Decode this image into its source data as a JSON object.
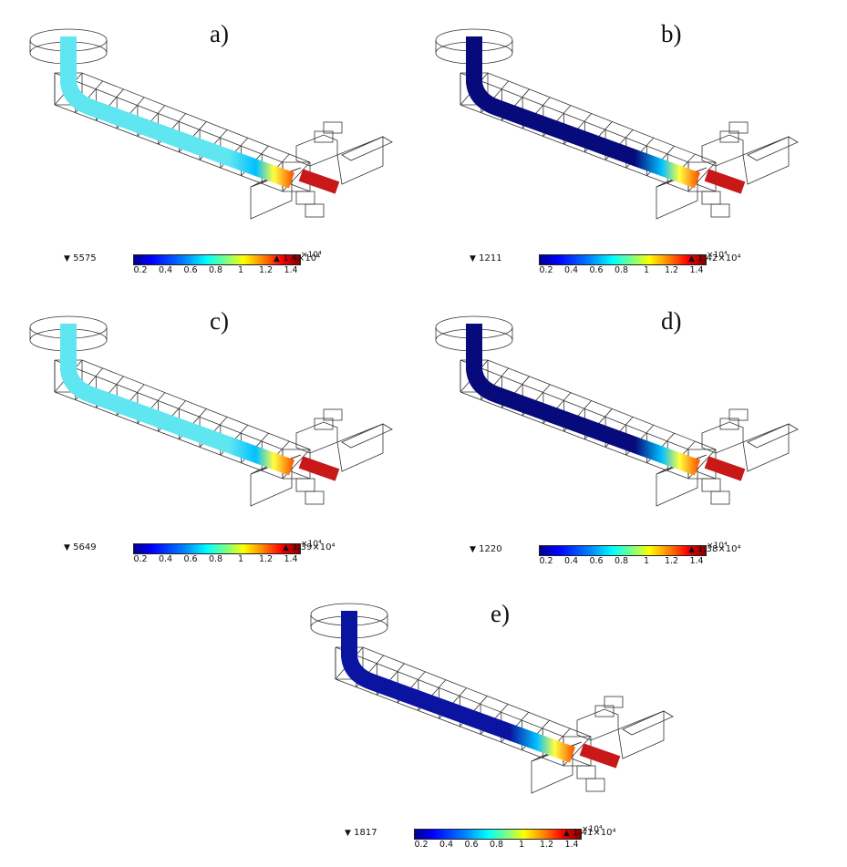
{
  "panels": [
    {
      "id": "a",
      "label": "a)",
      "color": "#5fe6f0",
      "min": "5575",
      "max": "1.4×10⁴"
    },
    {
      "id": "b",
      "label": "b)",
      "color": "#070a7a",
      "min": "1211",
      "max": "1.42×10⁴"
    },
    {
      "id": "c",
      "label": "c)",
      "color": "#5fe6f0",
      "min": "5649",
      "max": "1.39×10⁴"
    },
    {
      "id": "d",
      "label": "d)",
      "color": "#070a7a",
      "min": "1220",
      "max": "1.38×10⁴"
    },
    {
      "id": "e",
      "label": "e)",
      "color": "#0b14a0",
      "min": "1817",
      "max": "1.41×10⁴"
    }
  ],
  "colorbar": {
    "multiplier": "×10⁴",
    "ticks": [
      "0.2",
      "0.4",
      "0.6",
      "0.8",
      "1",
      "1.2",
      "1.4"
    ]
  },
  "colors": {
    "hot": "#c81818",
    "frame": "#333333"
  }
}
